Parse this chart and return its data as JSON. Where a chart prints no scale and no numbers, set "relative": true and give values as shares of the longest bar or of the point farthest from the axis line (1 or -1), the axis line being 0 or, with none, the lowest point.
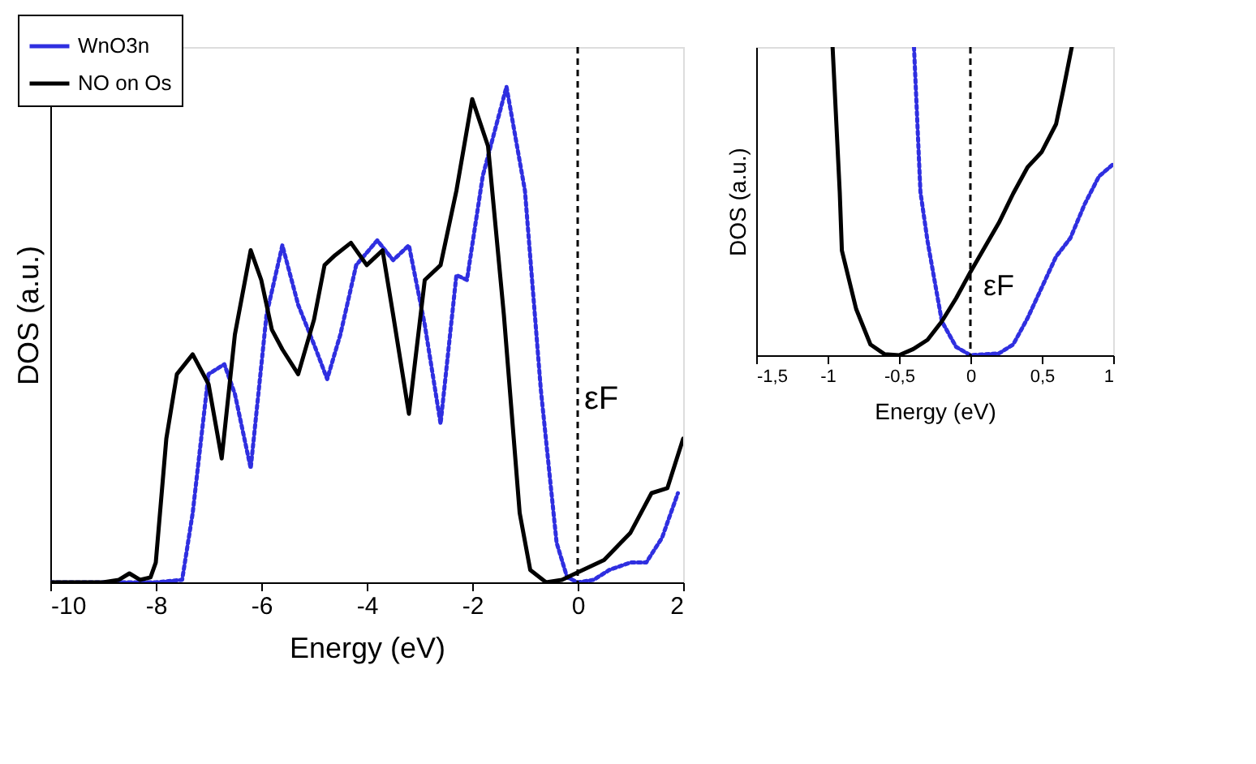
{
  "chart_data": [
    {
      "type": "line",
      "xlabel": "Energy (eV)",
      "ylabel": "DOS (a.u.)",
      "relative": true,
      "xlim": [
        -10,
        2
      ],
      "xticks": [
        -10,
        -8,
        -6,
        -4,
        -2,
        0,
        2
      ],
      "grid": false,
      "legend": "top left",
      "annotations": [
        {
          "text": "εF",
          "x": 0,
          "y": 0.37
        }
      ],
      "ref_lines": [
        {
          "axis": "x",
          "value": 0,
          "line_style": "dashed",
          "color": "#000000"
        }
      ],
      "series": [
        {
          "name": "WnO3n",
          "color": "#2f2fe0",
          "line_style": "dotted",
          "x": [
            -10,
            -9,
            -8,
            -7.5,
            -7.3,
            -7.0,
            -6.7,
            -6.5,
            -6.2,
            -5.9,
            -5.6,
            -5.3,
            -5.0,
            -4.75,
            -4.5,
            -4.2,
            -3.8,
            -3.5,
            -3.2,
            -2.9,
            -2.6,
            -2.3,
            -2.1,
            -1.8,
            -1.35,
            -1.0,
            -0.7,
            -0.4,
            -0.2,
            0,
            0.3,
            0.6,
            1.0,
            1.3,
            1.6,
            1.9
          ],
          "values": [
            0,
            0,
            0,
            0.005,
            0.14,
            0.42,
            0.44,
            0.38,
            0.23,
            0.54,
            0.68,
            0.56,
            0.48,
            0.41,
            0.5,
            0.64,
            0.69,
            0.65,
            0.68,
            0.52,
            0.32,
            0.62,
            0.61,
            0.82,
            1.0,
            0.79,
            0.39,
            0.08,
            0.01,
            0,
            0.005,
            0.025,
            0.04,
            0.04,
            0.09,
            0.18
          ]
        },
        {
          "name": "NO on Os",
          "color": "#000000",
          "line_style": "solid",
          "x": [
            -10,
            -9,
            -8.7,
            -8.5,
            -8.3,
            -8.1,
            -8.0,
            -7.8,
            -7.6,
            -7.3,
            -7.0,
            -6.75,
            -6.5,
            -6.2,
            -6.0,
            -5.8,
            -5.6,
            -5.3,
            -5.0,
            -4.8,
            -4.6,
            -4.3,
            -4.0,
            -3.7,
            -3.5,
            -3.2,
            -2.9,
            -2.6,
            -2.3,
            -2.0,
            -1.7,
            -1.4,
            -1.1,
            -0.9,
            -0.6,
            -0.3,
            0,
            0.5,
            1.0,
            1.4,
            1.7,
            2.0
          ],
          "values": [
            0,
            0,
            0.005,
            0.018,
            0.005,
            0.01,
            0.04,
            0.29,
            0.42,
            0.46,
            0.4,
            0.25,
            0.5,
            0.67,
            0.61,
            0.51,
            0.47,
            0.42,
            0.53,
            0.64,
            0.66,
            0.685,
            0.64,
            0.67,
            0.54,
            0.34,
            0.61,
            0.64,
            0.79,
            0.975,
            0.88,
            0.54,
            0.14,
            0.025,
            0,
            0.005,
            0.02,
            0.045,
            0.1,
            0.18,
            0.19,
            0.29
          ]
        }
      ]
    },
    {
      "type": "line",
      "xlabel": "Energy (eV)",
      "ylabel": "DOS (a.u.)",
      "relative": true,
      "xlim": [
        -1.5,
        1
      ],
      "xticks": [
        {
          "value": -1.5,
          "label": "-1,5"
        },
        -1,
        {
          "value": -0.5,
          "label": "-0,5"
        },
        0,
        {
          "value": 0.5,
          "label": "0,5"
        },
        1
      ],
      "grid": false,
      "annotations": [
        "εF"
      ],
      "ref_lines": [
        {
          "axis": "x",
          "value": 0,
          "line_style": "dashed",
          "color": "#000000"
        }
      ],
      "series": [
        {
          "color": "#2f2fe0",
          "line_style": "dotted",
          "x": [
            -0.395,
            -0.35,
            -0.3,
            -0.2,
            -0.1,
            0,
            0.2,
            0.3,
            0.4,
            0.5,
            0.6,
            0.7,
            0.8,
            0.9,
            1.0
          ],
          "values": [
            1.0,
            0.53,
            0.37,
            0.11,
            0.027,
            0,
            0.006,
            0.035,
            0.12,
            0.22,
            0.32,
            0.38,
            0.49,
            0.58,
            0.62
          ]
        },
        {
          "color": "#000000",
          "line_style": "solid",
          "x": [
            -0.965,
            -0.915,
            -0.9,
            -0.8,
            -0.7,
            -0.6,
            -0.5,
            -0.4,
            -0.3,
            -0.2,
            -0.1,
            0,
            0.1,
            0.2,
            0.3,
            0.4,
            0.5,
            0.6,
            0.65,
            0.71
          ],
          "values": [
            1.0,
            0.53,
            0.34,
            0.15,
            0.035,
            0.003,
            0,
            0.02,
            0.05,
            0.11,
            0.185,
            0.27,
            0.35,
            0.43,
            0.525,
            0.61,
            0.66,
            0.75,
            0.86,
            1.0
          ]
        }
      ]
    }
  ]
}
